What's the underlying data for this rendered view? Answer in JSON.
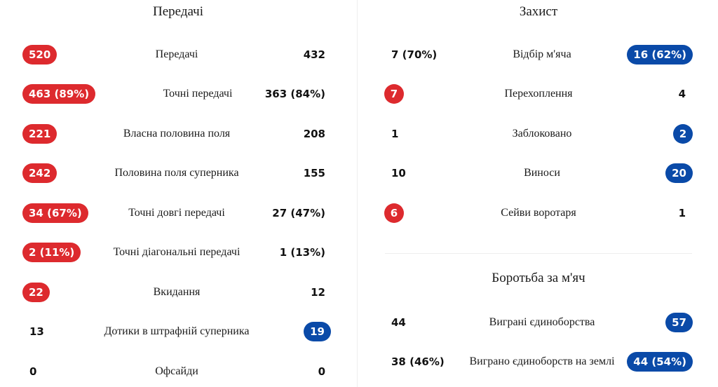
{
  "colors": {
    "home_highlight": "#dd2a2e",
    "away_highlight": "#0a4aa8"
  },
  "passes": {
    "title": "Передачі",
    "rows": [
      {
        "label": "Передачі",
        "home": "520",
        "away": "432",
        "hl": "home"
      },
      {
        "label": "Точні передачі",
        "home": "463 (89%)",
        "away": "363 (84%)",
        "hl": "home"
      },
      {
        "label": "Власна половина поля",
        "home": "221",
        "away": "208",
        "hl": "home"
      },
      {
        "label": "Половина поля суперника",
        "home": "242",
        "away": "155",
        "hl": "home"
      },
      {
        "label": "Точні довгі передачі",
        "home": "34 (67%)",
        "away": "27 (47%)",
        "hl": "home"
      },
      {
        "label": "Точні діагональні передачі",
        "home": "2 (11%)",
        "away": "1 (13%)",
        "hl": "home"
      },
      {
        "label": "Вкидання",
        "home": "22",
        "away": "12",
        "hl": "home"
      },
      {
        "label": "Дотики в штрафній суперника",
        "home": "13",
        "away": "19",
        "hl": "away"
      },
      {
        "label": "Офсайди",
        "home": "0",
        "away": "0",
        "hl": "none"
      }
    ]
  },
  "defense": {
    "title": "Захист",
    "rows": [
      {
        "label": "Відбір м'яча",
        "home": "7 (70%)",
        "away": "16 (62%)",
        "hl": "away"
      },
      {
        "label": "Перехоплення",
        "home": "7",
        "away": "4",
        "hl": "home"
      },
      {
        "label": "Заблоковано",
        "home": "1",
        "away": "2",
        "hl": "away"
      },
      {
        "label": "Виноси",
        "home": "10",
        "away": "20",
        "hl": "away"
      },
      {
        "label": "Сейви воротаря",
        "home": "6",
        "away": "1",
        "hl": "home"
      }
    ]
  },
  "duels": {
    "title": "Боротьба за м'яч",
    "rows": [
      {
        "label": "Виграні єдиноборства",
        "home": "44",
        "away": "57",
        "hl": "away"
      },
      {
        "label": "Виграно єдиноборств на землі",
        "home": "38 (46%)",
        "away": "44 (54%)",
        "hl": "away"
      }
    ]
  }
}
